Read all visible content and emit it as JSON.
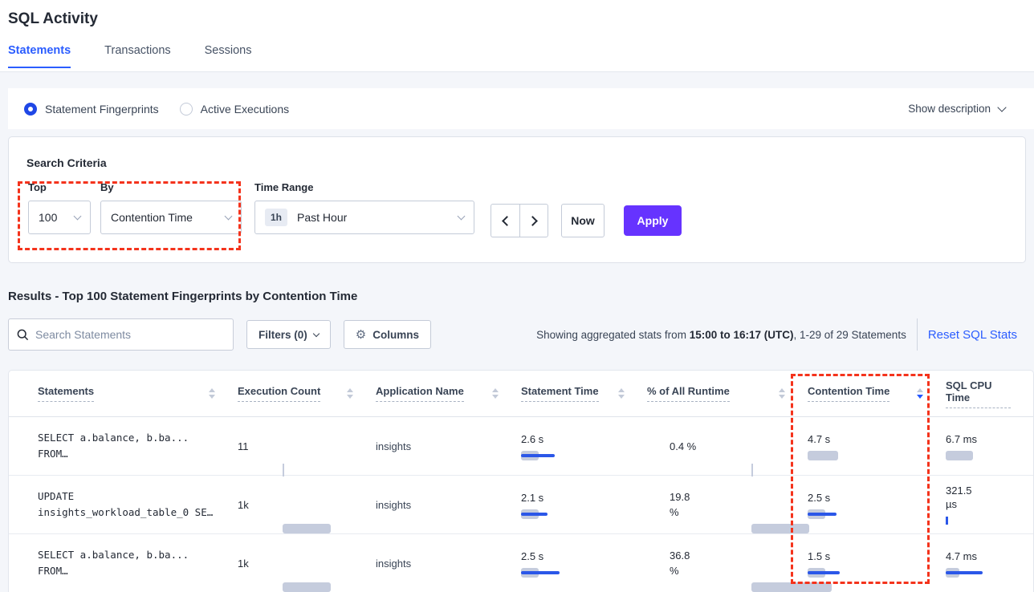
{
  "page": {
    "title": "SQL Activity"
  },
  "tabs": [
    {
      "label": "Statements",
      "active": true
    },
    {
      "label": "Transactions",
      "active": false
    },
    {
      "label": "Sessions",
      "active": false
    }
  ],
  "view_toggle": {
    "options": [
      {
        "label": "Statement Fingerprints",
        "selected": true
      },
      {
        "label": "Active Executions",
        "selected": false
      }
    ],
    "show_description": "Show description"
  },
  "search_criteria": {
    "heading": "Search Criteria",
    "top": {
      "label": "Top",
      "value": "100"
    },
    "by": {
      "label": "By",
      "value": "Contention Time"
    },
    "time_range": {
      "label": "Time Range",
      "badge": "1h",
      "value": "Past Hour"
    },
    "now_label": "Now",
    "apply_label": "Apply"
  },
  "results": {
    "heading": "Results - Top 100 Statement Fingerprints by Contention Time",
    "search_placeholder": "Search Statements",
    "filters_label": "Filters (0)",
    "columns_label": "Columns",
    "stats_prefix": "Showing aggregated stats from ",
    "stats_bold": "15:00 to 16:17 (UTC)",
    "stats_suffix": ", 1-29 of 29 Statements",
    "reset_label": "Reset SQL Stats"
  },
  "table": {
    "headers": [
      {
        "label": "Statements",
        "sort": "inactive"
      },
      {
        "label": "Execution Count",
        "sort": "inactive"
      },
      {
        "label": "Application Name",
        "sort": "inactive"
      },
      {
        "label": "Statement Time",
        "sort": "inactive"
      },
      {
        "label": "% of All Runtime",
        "sort": "inactive"
      },
      {
        "label": "Contention Time",
        "sort": "desc"
      },
      {
        "label": "SQL CPU Time",
        "sort": "hidden"
      }
    ],
    "rows": [
      {
        "statement": [
          "SELECT a.balance, b.ba...",
          "FROM…"
        ],
        "execution_count": "11",
        "application": "insights",
        "statement_time": "2.6 s",
        "pct_runtime": "0.4 %",
        "contention_time": "4.7 s",
        "sql_cpu_time": "6.7 ms",
        "bars": {
          "exec": {
            "style": "tick"
          },
          "stmt": {
            "g": 22,
            "b": 42
          },
          "pct": {
            "style": "tick"
          },
          "cont": {
            "g": 38,
            "b": 0
          },
          "cpu": {
            "g": 34,
            "b": 0
          }
        }
      },
      {
        "statement": [
          "UPDATE",
          "insights_workload_table_0 SE…"
        ],
        "execution_count": "1k",
        "application": "insights",
        "statement_time": "2.1 s",
        "pct_runtime": "19.8 %",
        "contention_time": "2.5 s",
        "sql_cpu_time": "321.5 µs",
        "bars": {
          "exec": {
            "g": 60,
            "b": 0
          },
          "stmt": {
            "g": 22,
            "b": 33
          },
          "pct": {
            "g": 72,
            "b": 0
          },
          "cont": {
            "g": 22,
            "b": 36
          },
          "cpu": {
            "style": "btick"
          }
        }
      },
      {
        "statement": [
          "SELECT a.balance, b.ba...",
          "FROM…"
        ],
        "execution_count": "1k",
        "application": "insights",
        "statement_time": "2.5 s",
        "pct_runtime": "36.8 %",
        "contention_time": "1.5 s",
        "sql_cpu_time": "4.7 ms",
        "bars": {
          "exec": {
            "g": 60,
            "b": 0
          },
          "stmt": {
            "g": 22,
            "b": 48
          },
          "pct": {
            "g": 100,
            "b": 0
          },
          "cont": {
            "g": 22,
            "b": 40
          },
          "cpu": {
            "g": 17,
            "b": 46
          }
        }
      }
    ]
  },
  "colors": {
    "accent_blue": "#2b57e8",
    "link_blue": "#2b5dff",
    "bar_gray": "#c5ccdd",
    "annotation_red": "#f4331c",
    "apply_purple": "#6633ff"
  }
}
